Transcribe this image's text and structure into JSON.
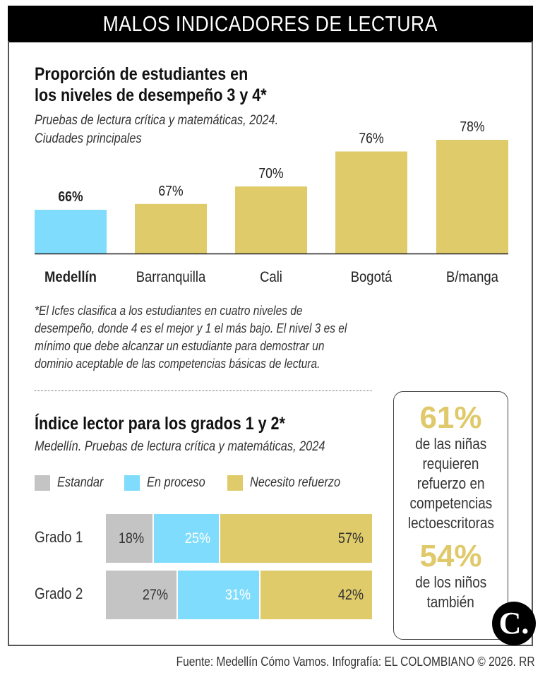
{
  "header": {
    "title": "MALOS INDICADORES DE LECTURA"
  },
  "section1": {
    "title_line1": "Proporción de estudiantes en",
    "title_line2": "los niveles de desempeño 3 y 4*",
    "subtitle_line1": "Pruebas de lectura crítica y matemáticas, 2024.",
    "subtitle_line2": "Ciudades principales",
    "footnote": [
      "*El Icfes clasifica a los estudiantes en cuatro niveles de",
      "desempeño, donde 4 es el mejor y 1 el más bajo. El nivel 3 es el",
      "mínimo que debe alcanzar un estudiante para demostrar un",
      "dominio aceptable de las competencias básicas de lectura."
    ]
  },
  "section2": {
    "title": "Índice lector para los grados 1 y 2*",
    "subtitle": "Medellín. Pruebas de lectura crítica y matemáticas, 2024"
  },
  "chart_data": [
    {
      "type": "bar",
      "categories": [
        "Medellín",
        "Barranquilla",
        "Cali",
        "Bogotá",
        "B/manga"
      ],
      "values": [
        66,
        67,
        70,
        76,
        78
      ],
      "labels": [
        "66%",
        "67%",
        "70%",
        "76%",
        "78%"
      ],
      "highlight": "Medellín",
      "ylim": [
        58.5,
        78
      ],
      "colors": {
        "highlight": "#7fdcfc",
        "default": "#dfcb6a"
      }
    },
    {
      "type": "bar",
      "stacked": true,
      "orientation": "horizontal",
      "categories": [
        "Grado 1",
        "Grado 2"
      ],
      "series": [
        {
          "name": "Estandar",
          "values": [
            18,
            27
          ],
          "labels": [
            "18%",
            "27%"
          ],
          "color": "#c4c4c4"
        },
        {
          "name": "En proceso",
          "values": [
            25,
            31
          ],
          "labels": [
            "25%",
            "31%"
          ],
          "color": "#7fdcfc"
        },
        {
          "name": "Necesito refuerzo",
          "values": [
            57,
            42
          ],
          "labels": [
            "57%",
            "42%"
          ],
          "color": "#dfcb6a"
        }
      ],
      "legend": "top"
    }
  ],
  "callout": {
    "stat1": "61%",
    "text1": [
      "de las niñas",
      "requieren",
      "refuerzo en",
      "competencias",
      "lectoescritoras"
    ],
    "stat2": "54%",
    "text2": [
      "de los niños",
      "también"
    ]
  },
  "logo": {
    "text": "C."
  },
  "source": "Fuente: Medellín Cómo Vamos. Infografía: EL COLOMBIANO © 2026. RR"
}
